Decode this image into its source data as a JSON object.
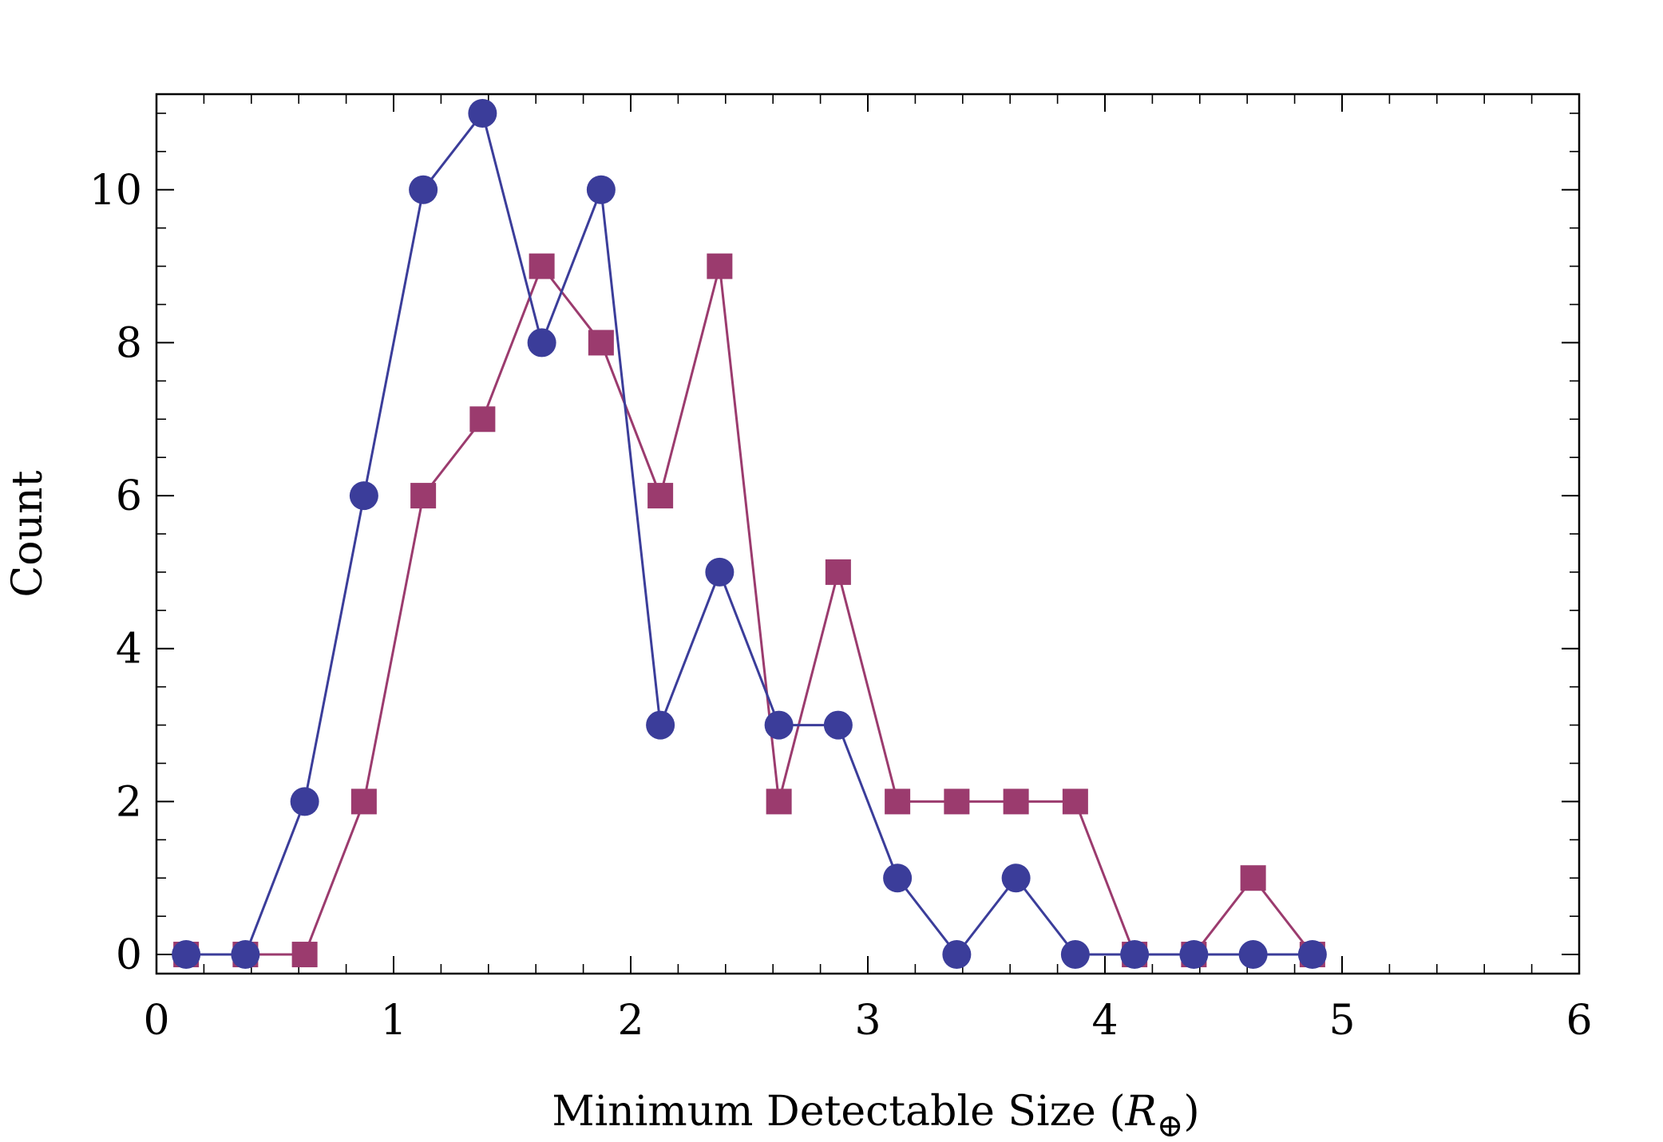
{
  "chart_data": {
    "type": "line",
    "title": "",
    "xlabel": "Minimum Detectable Size (",
    "xlabel_symbol": "R",
    "xlabel_subscript": "⊕",
    "xlabel_close": ")",
    "ylabel": "Count",
    "xlim": [
      0,
      6
    ],
    "ylim": [
      -0.25,
      11.25
    ],
    "xticks": [
      0,
      1,
      2,
      3,
      4,
      5,
      6
    ],
    "yticks": [
      0,
      2,
      4,
      6,
      8,
      10
    ],
    "grid": false,
    "x": [
      0.125,
      0.375,
      0.625,
      0.875,
      1.125,
      1.375,
      1.625,
      1.875,
      2.125,
      2.375,
      2.625,
      2.875,
      3.125,
      3.375,
      3.625,
      3.875,
      4.125,
      4.375,
      4.625,
      4.875
    ],
    "series": [
      {
        "name": "circles",
        "marker": "circle",
        "color": "#3b3d9a",
        "values": [
          0,
          0,
          2,
          6,
          10,
          11,
          8,
          10,
          3,
          5,
          3,
          3,
          1,
          0,
          1,
          0,
          0,
          0,
          0,
          0
        ]
      },
      {
        "name": "squares",
        "marker": "square",
        "color": "#9b3b6e",
        "values": [
          0,
          0,
          0,
          2,
          6,
          7,
          9,
          8,
          6,
          9,
          2,
          5,
          2,
          2,
          2,
          2,
          0,
          0,
          1,
          0
        ]
      }
    ]
  }
}
